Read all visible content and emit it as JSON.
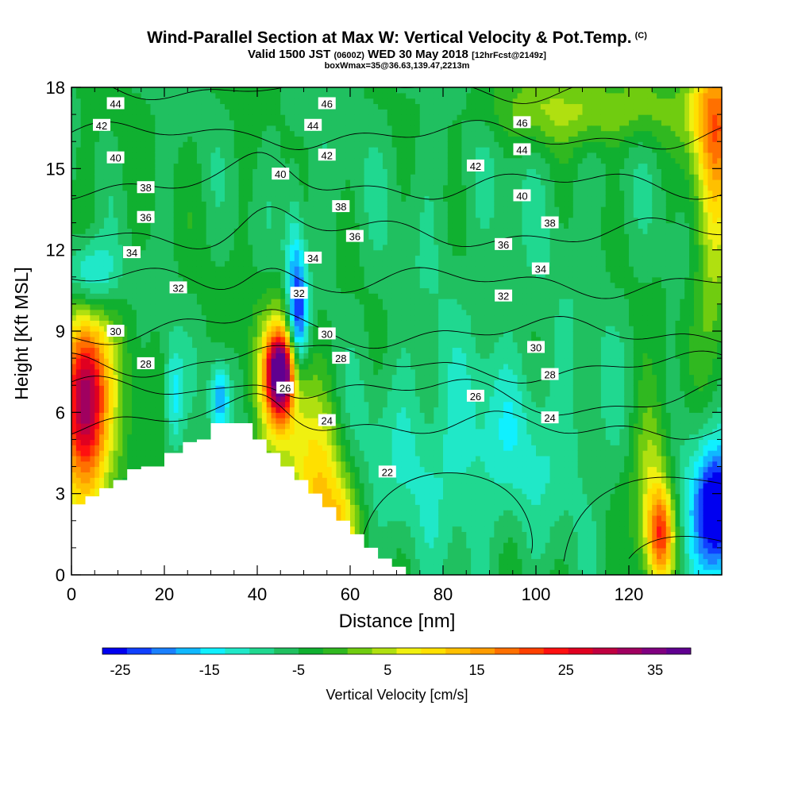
{
  "header": {
    "title": "Wind-Parallel Section at Max W: Vertical Velocity & Pot.Temp.",
    "copyright": "(C)",
    "valid_prefix": "Valid 1500 JST",
    "utc": "(0600Z)",
    "valid_date": "WED 30 May 2018",
    "forecast": "[12hrFcst@2149z]",
    "box_info": "boxWmax=35@36.63,139.47,2213m"
  },
  "colors": {
    "colorbar": [
      "#0000f0",
      "#1040ff",
      "#1a80ff",
      "#10b8ff",
      "#10f0ff",
      "#20e8c8",
      "#20d890",
      "#20c060",
      "#10b030",
      "#30b820",
      "#70cc10",
      "#b0e010",
      "#f0f010",
      "#ffe000",
      "#ffc000",
      "#ff9c00",
      "#ff7000",
      "#ff4000",
      "#ff1010",
      "#e00020",
      "#c00040",
      "#a00060",
      "#800080",
      "#600090"
    ],
    "terrain": "#ffffff",
    "contour": "#000000"
  },
  "chart_data": {
    "type": "heatmap",
    "xlabel": "Distance [nm]",
    "ylabel": "Height [Kft MSL]",
    "xlim": [
      0,
      140
    ],
    "ylim": [
      0,
      18
    ],
    "xticks": [
      "0",
      "20",
      "40",
      "60",
      "80",
      "100",
      "120"
    ],
    "yticks": [
      "0",
      "3",
      "6",
      "9",
      "12",
      "15",
      "18"
    ],
    "colorbar": {
      "label": "Vertical Velocity [cm/s]",
      "range": [
        -27,
        39
      ],
      "step": 3,
      "tick_labels": [
        "-25",
        "-15",
        "-5",
        "5",
        "15",
        "25",
        "35"
      ],
      "tick_values": [
        -25,
        -15,
        -5,
        5,
        15,
        25,
        35
      ]
    },
    "background_value": -3,
    "vertical_velocity_features": [
      {
        "x": 3,
        "y": 6.5,
        "sx": 3,
        "sy": 2.0,
        "value": 30
      },
      {
        "x": 3,
        "y": 5.5,
        "sx": 6,
        "sy": 3.5,
        "value": 10
      },
      {
        "x": 45,
        "y": 7.5,
        "sx": 2,
        "sy": 1.0,
        "value": 36
      },
      {
        "x": 45,
        "y": 7.0,
        "sx": 4,
        "sy": 2.2,
        "value": 15
      },
      {
        "x": 53,
        "y": 3.0,
        "sx": 4,
        "sy": 2.5,
        "value": 14
      },
      {
        "x": 58,
        "y": 1.5,
        "sx": 3,
        "sy": 1.5,
        "value": 9
      },
      {
        "x": 49,
        "y": 9.5,
        "sx": 1.5,
        "sy": 1.5,
        "value": -20
      },
      {
        "x": 48,
        "y": 11,
        "sx": 1.5,
        "sy": 2.5,
        "value": -13
      },
      {
        "x": 22,
        "y": 6.5,
        "sx": 1.5,
        "sy": 1.5,
        "value": -14
      },
      {
        "x": 32,
        "y": 6.5,
        "sx": 1.5,
        "sy": 1.0,
        "value": -18
      },
      {
        "x": 4,
        "y": 11,
        "sx": 4,
        "sy": 1.0,
        "value": -18
      },
      {
        "x": 127,
        "y": 1.5,
        "sx": 2,
        "sy": 1.2,
        "value": 19
      },
      {
        "x": 125,
        "y": 3.5,
        "sx": 3,
        "sy": 2.5,
        "value": 10
      },
      {
        "x": 139,
        "y": 2.5,
        "sx": 3,
        "sy": 1.5,
        "value": -24
      },
      {
        "x": 138,
        "y": 2.5,
        "sx": 5,
        "sy": 3.0,
        "value": -12
      },
      {
        "x": 110,
        "y": 17.2,
        "sx": 15,
        "sy": 1.0,
        "value": 8
      },
      {
        "x": 139,
        "y": 17,
        "sx": 4,
        "sy": 2.0,
        "value": 18
      },
      {
        "x": 138,
        "y": 12,
        "sx": 3,
        "sy": 4.0,
        "value": 8
      },
      {
        "x": 90,
        "y": 14,
        "sx": 30,
        "sy": 4.0,
        "value": -5
      },
      {
        "x": 90,
        "y": 5,
        "sx": 20,
        "sy": 2.5,
        "value": -9
      },
      {
        "x": 80,
        "y": 3,
        "sx": 15,
        "sy": 2.5,
        "value": -5
      }
    ],
    "terrain_profile": {
      "x": [
        0,
        3,
        6,
        9,
        12,
        15,
        18,
        20,
        21,
        24,
        27,
        30,
        33,
        36,
        39,
        42,
        45,
        48,
        51,
        54,
        57,
        60,
        63,
        66,
        69
      ],
      "height": [
        2.6,
        2.9,
        3.2,
        3.5,
        3.9,
        4.0,
        4.0,
        4.5,
        4.5,
        4.9,
        5.0,
        5.6,
        5.6,
        5.6,
        5.0,
        4.5,
        4.0,
        3.5,
        3.0,
        2.5,
        2.0,
        1.5,
        1.0,
        0.6,
        0.3
      ]
    },
    "potential_temperature_contours": {
      "levels": [
        22,
        24,
        26,
        28,
        30,
        32,
        34,
        36,
        38,
        40,
        42,
        44,
        46
      ],
      "labels": [
        {
          "text": "44",
          "x": 9.5,
          "y": 17.4
        },
        {
          "text": "46",
          "x": 55,
          "y": 17.4
        },
        {
          "text": "46",
          "x": 97,
          "y": 16.7
        },
        {
          "text": "42",
          "x": 6.5,
          "y": 16.6
        },
        {
          "text": "44",
          "x": 52,
          "y": 16.6
        },
        {
          "text": "44",
          "x": 97,
          "y": 15.7
        },
        {
          "text": "40",
          "x": 9.5,
          "y": 15.4
        },
        {
          "text": "42",
          "x": 55,
          "y": 15.5
        },
        {
          "text": "42",
          "x": 87,
          "y": 15.1
        },
        {
          "text": "40",
          "x": 45,
          "y": 14.8
        },
        {
          "text": "38",
          "x": 16,
          "y": 14.3
        },
        {
          "text": "40",
          "x": 97,
          "y": 14.0
        },
        {
          "text": "38",
          "x": 58,
          "y": 13.6
        },
        {
          "text": "36",
          "x": 16,
          "y": 13.2
        },
        {
          "text": "38",
          "x": 103,
          "y": 13.0
        },
        {
          "text": "36",
          "x": 61,
          "y": 12.5
        },
        {
          "text": "36",
          "x": 93,
          "y": 12.2
        },
        {
          "text": "34",
          "x": 13,
          "y": 11.9
        },
        {
          "text": "34",
          "x": 52,
          "y": 11.7
        },
        {
          "text": "34",
          "x": 101,
          "y": 11.3
        },
        {
          "text": "32",
          "x": 23,
          "y": 10.6
        },
        {
          "text": "32",
          "x": 49,
          "y": 10.4
        },
        {
          "text": "32",
          "x": 93,
          "y": 10.3
        },
        {
          "text": "30",
          "x": 9.5,
          "y": 9.0
        },
        {
          "text": "30",
          "x": 55,
          "y": 8.9
        },
        {
          "text": "30",
          "x": 100,
          "y": 8.4
        },
        {
          "text": "28",
          "x": 16,
          "y": 7.8
        },
        {
          "text": "28",
          "x": 58,
          "y": 8.0
        },
        {
          "text": "28",
          "x": 103,
          "y": 7.4
        },
        {
          "text": "26",
          "x": 46,
          "y": 6.9
        },
        {
          "text": "26",
          "x": 87,
          "y": 6.6
        },
        {
          "text": "24",
          "x": 55,
          "y": 5.7
        },
        {
          "text": "24",
          "x": 103,
          "y": 5.8
        },
        {
          "text": "22",
          "x": 68,
          "y": 3.8
        }
      ]
    }
  }
}
